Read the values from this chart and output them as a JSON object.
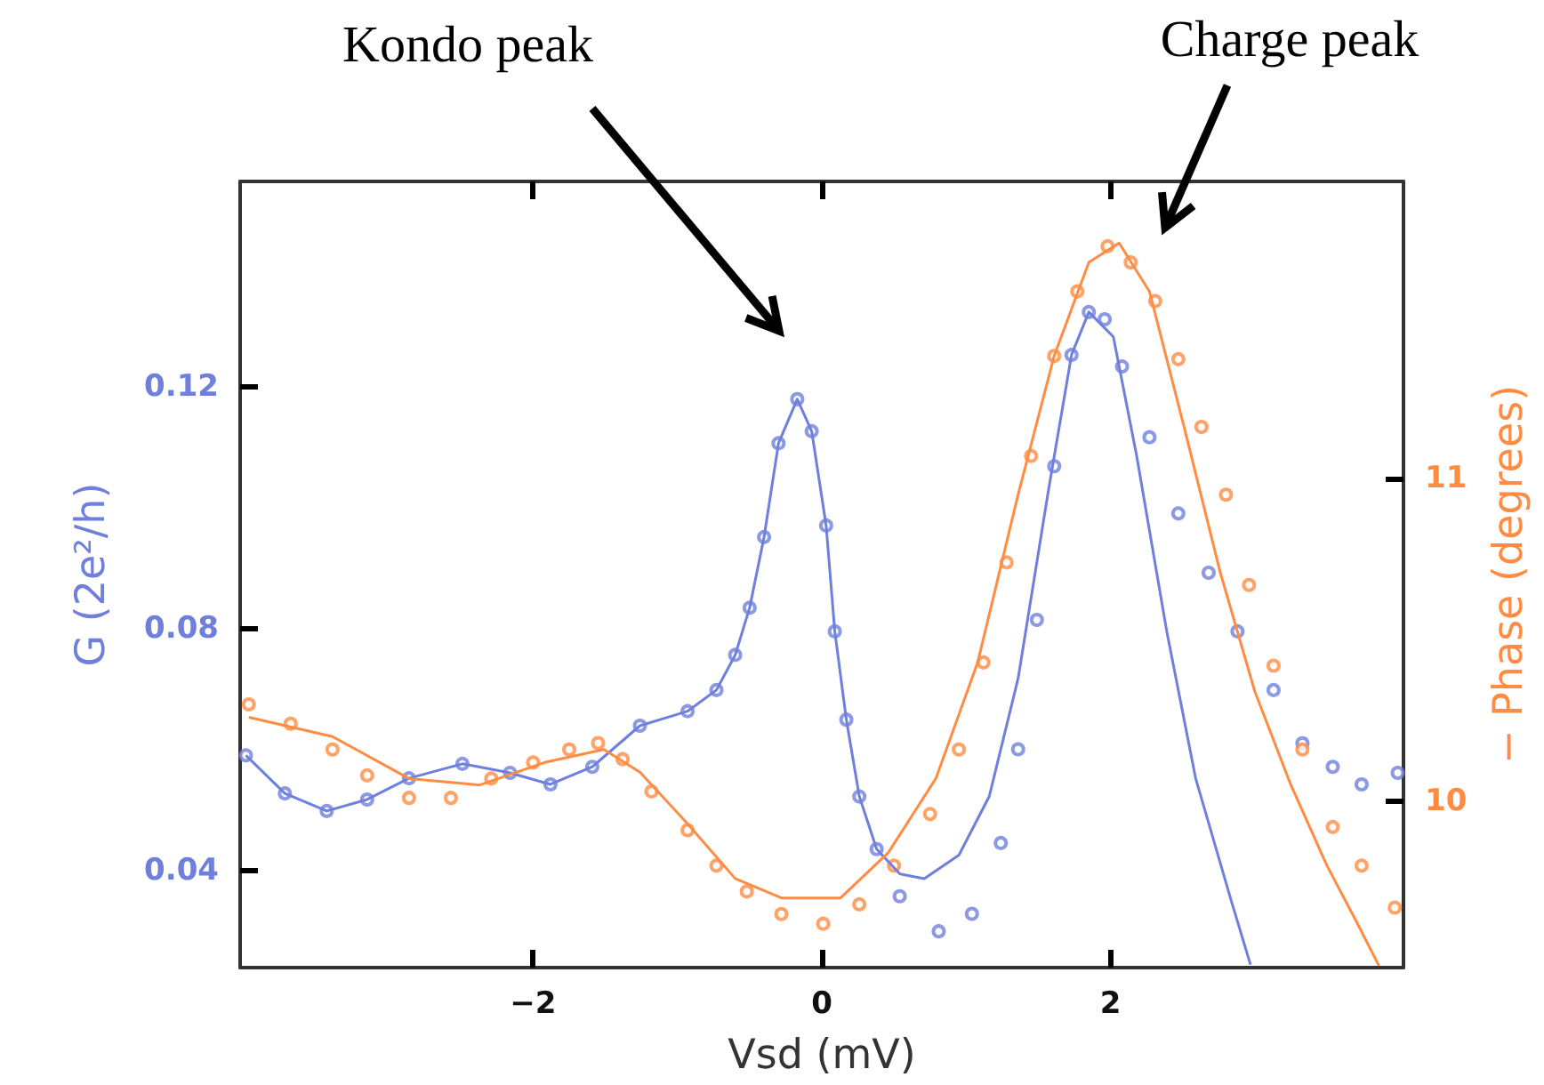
{
  "chart_data": {
    "type": "scatter",
    "xlabel": "Vsd (mV)",
    "ylabel": "G (2e²/h)",
    "y2label": "− Phase (degrees)",
    "xlim": [
      -4.03,
      4.03
    ],
    "xticks": [
      {
        "value": -2,
        "label": "−2"
      },
      0,
      2
    ],
    "ylim": [
      0.024,
      0.154
    ],
    "yticks": [
      0.04,
      0.08,
      0.12
    ],
    "y2lim": [
      9.484,
      11.921
    ],
    "y2ticks": [
      10,
      11
    ],
    "grid": false,
    "annotations": [
      "Kondo peak",
      "Charge peak"
    ],
    "series": [
      {
        "marker": "circle",
        "color": "#6f7fdc",
        "x": [
          -3.99,
          -3.72,
          -3.43,
          -3.15,
          -2.86,
          -2.49,
          -2.16,
          -1.88,
          -1.59,
          -1.26,
          -0.93,
          -0.73,
          -0.6,
          -0.5,
          -0.4,
          -0.3,
          -0.17,
          -0.07,
          0.03,
          0.09,
          0.17,
          0.26,
          0.38,
          0.54,
          0.81,
          1.04,
          1.24,
          1.36,
          1.49,
          1.61,
          1.73,
          1.85,
          1.96,
          2.08,
          2.27,
          2.47,
          2.68,
          2.88,
          3.13,
          3.33,
          3.54,
          3.74,
          3.99
        ],
        "values": [
          0.0591,
          0.0528,
          0.0499,
          0.0518,
          0.0553,
          0.0577,
          0.0562,
          0.0543,
          0.0572,
          0.064,
          0.0664,
          0.0699,
          0.0757,
          0.0835,
          0.0952,
          0.1107,
          0.118,
          0.1127,
          0.0971,
          0.0796,
          0.065,
          0.0523,
          0.0436,
          0.0358,
          0.03,
          0.0329,
          0.0446,
          0.0601,
          0.0815,
          0.1069,
          0.1253,
          0.1324,
          0.1312,
          0.1234,
          0.1117,
          0.0991,
          0.0893,
          0.0796,
          0.0699,
          0.0611,
          0.0572,
          0.0543,
          0.0562
        ]
      },
      {
        "type": "line",
        "marker": "none",
        "line_style": "solid",
        "color": "#6f7fdc",
        "x": [
          -3.99,
          -3.72,
          -3.43,
          -3.15,
          -2.86,
          -2.49,
          -2.16,
          -1.88,
          -1.59,
          -1.26,
          -0.93,
          -0.73,
          -0.6,
          -0.5,
          -0.4,
          -0.3,
          -0.17,
          -0.07,
          0.03,
          0.09,
          0.17,
          0.26,
          0.38,
          0.54,
          0.71,
          0.95,
          1.16,
          1.36,
          1.57,
          1.73,
          1.85,
          2.02,
          2.18,
          2.39,
          2.59,
          2.84,
          2.97
        ],
        "values": [
          0.0591,
          0.0528,
          0.0499,
          0.0518,
          0.0553,
          0.0577,
          0.0562,
          0.0543,
          0.0572,
          0.064,
          0.0664,
          0.0699,
          0.0757,
          0.0835,
          0.0952,
          0.1107,
          0.118,
          0.1127,
          0.0971,
          0.0796,
          0.065,
          0.0523,
          0.0436,
          0.0395,
          0.0387,
          0.0426,
          0.0523,
          0.0718,
          0.1029,
          0.1253,
          0.1324,
          0.1283,
          0.1088,
          0.0796,
          0.0553,
          0.0348,
          0.0245
        ]
      },
      {
        "marker": "circle",
        "axis": "y2",
        "color": "#ff8c42",
        "x": [
          -3.97,
          -3.68,
          -3.39,
          -3.15,
          -2.86,
          -2.57,
          -2.29,
          -2.0,
          -1.75,
          -1.55,
          -1.38,
          -1.18,
          -0.93,
          -0.73,
          -0.52,
          -0.28,
          0.01,
          0.26,
          0.5,
          0.75,
          0.95,
          1.12,
          1.28,
          1.45,
          1.61,
          1.77,
          1.98,
          2.14,
          2.31,
          2.47,
          2.63,
          2.8,
          2.96,
          3.13,
          3.33,
          3.54,
          3.74,
          3.97
        ],
        "values": [
          10.3,
          10.24,
          10.16,
          10.08,
          10.01,
          10.01,
          10.07,
          10.12,
          10.16,
          10.18,
          10.13,
          10.03,
          9.91,
          9.8,
          9.72,
          9.65,
          9.62,
          9.68,
          9.8,
          9.96,
          10.16,
          10.43,
          10.74,
          11.07,
          11.38,
          11.58,
          11.72,
          11.67,
          11.55,
          11.37,
          11.16,
          10.95,
          10.67,
          10.42,
          10.16,
          9.92,
          9.8,
          9.67
        ]
      },
      {
        "type": "line",
        "marker": "none",
        "line_style": "solid",
        "axis": "y2",
        "color": "#ff8c42",
        "x": [
          -3.97,
          -3.39,
          -2.86,
          -2.37,
          -1.92,
          -1.51,
          -1.26,
          -0.93,
          -0.6,
          -0.28,
          -0.15,
          0.13,
          0.46,
          0.79,
          1.08,
          1.36,
          1.61,
          1.85,
          2.06,
          2.27,
          2.51,
          2.76,
          3.0,
          3.25,
          3.5,
          3.7,
          3.86
        ],
        "values": [
          10.26,
          10.2,
          10.07,
          10.05,
          10.12,
          10.16,
          10.09,
          9.93,
          9.76,
          9.7,
          9.7,
          9.7,
          9.84,
          10.07,
          10.43,
          10.95,
          11.38,
          11.67,
          11.73,
          11.58,
          11.16,
          10.71,
          10.34,
          10.05,
          9.8,
          9.63,
          9.49
        ]
      }
    ]
  }
}
